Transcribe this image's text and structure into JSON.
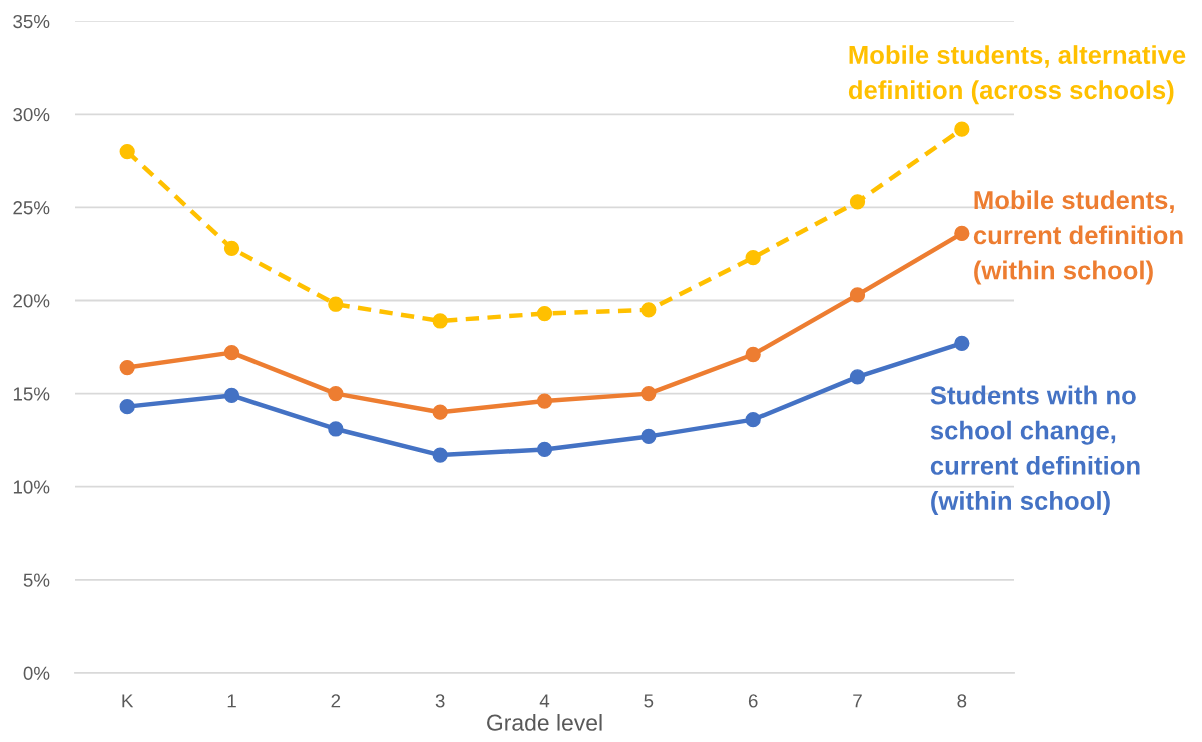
{
  "chart_data": {
    "type": "line",
    "categories": [
      "K",
      "1",
      "2",
      "3",
      "4",
      "5",
      "6",
      "7",
      "8"
    ],
    "xlabel": "Grade level",
    "series": [
      {
        "name": "Students with no\nschool change,\ncurrent definition\n(within school)",
        "color": "#4472c4",
        "line_style": "solid",
        "values": [
          14.3,
          14.9,
          13.1,
          11.7,
          12.0,
          12.7,
          13.6,
          15.9,
          17.7
        ]
      },
      {
        "name": "Mobile students,\ncurrent definition\n(within school)",
        "color": "#ed7d31",
        "line_style": "solid",
        "values": [
          16.4,
          17.2,
          15.0,
          14.0,
          14.6,
          15.0,
          17.1,
          20.3,
          23.6
        ]
      },
      {
        "name": "Mobile students, alternative\ndefinition (across schools)",
        "color": "#ffc000",
        "line_style": "dashed",
        "values": [
          28.0,
          22.8,
          19.8,
          18.9,
          19.3,
          19.5,
          22.3,
          25.3,
          29.2
        ]
      }
    ],
    "ylim": [
      0,
      35
    ],
    "yticks": [
      {
        "value": 0,
        "label": "0%"
      },
      {
        "value": 5,
        "label": "5%"
      },
      {
        "value": 10,
        "label": "10%"
      },
      {
        "value": 15,
        "label": "15%"
      },
      {
        "value": 20,
        "label": "20%"
      },
      {
        "value": 25,
        "label": "25%"
      },
      {
        "value": 30,
        "label": "30%"
      },
      {
        "value": 35,
        "label": "35%"
      }
    ],
    "grid": "y",
    "legend": false,
    "marker": "circle"
  }
}
